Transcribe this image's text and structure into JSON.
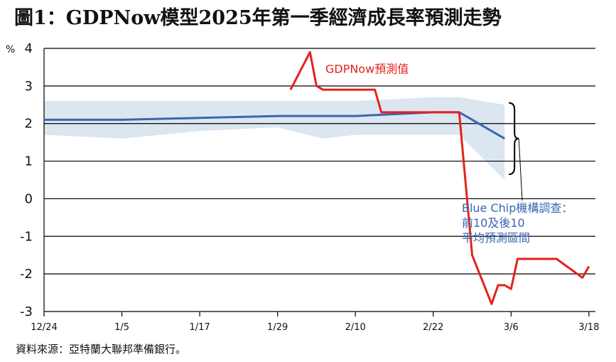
{
  "header": {
    "title": "圖1：GDPNow模型2025年第一季經濟成長率預測走勢"
  },
  "source": "資料來源：亞特蘭大聯邦準備銀行。",
  "chart_data": {
    "type": "line",
    "unit_label": "%",
    "ylim": [
      -3,
      4
    ],
    "yticks": [
      4,
      3,
      2,
      1,
      0,
      -1,
      -2,
      -3
    ],
    "xlim_days": [
      0,
      85
    ],
    "xticks": [
      {
        "label": "12/24",
        "day": 0
      },
      {
        "label": "1/5",
        "day": 12
      },
      {
        "label": "1/17",
        "day": 24
      },
      {
        "label": "1/29",
        "day": 36
      },
      {
        "label": "2/10",
        "day": 48
      },
      {
        "label": "2/22",
        "day": 60
      },
      {
        "label": "3/6",
        "day": 72
      },
      {
        "label": "3/18",
        "day": 84
      }
    ],
    "grid": true,
    "series": [
      {
        "name": "GDPNow預測值",
        "color": "#e2231a",
        "points": [
          [
            38,
            2.9
          ],
          [
            41,
            3.9
          ],
          [
            42,
            3.0
          ],
          [
            43,
            2.9
          ],
          [
            51,
            2.9
          ],
          [
            52,
            2.3
          ],
          [
            64,
            2.3
          ],
          [
            66,
            -1.5
          ],
          [
            69,
            -2.8
          ],
          [
            70,
            -2.3
          ],
          [
            71,
            -2.3
          ],
          [
            72,
            -2.4
          ],
          [
            73,
            -1.6
          ],
          [
            79,
            -1.6
          ],
          [
            83,
            -2.1
          ],
          [
            84,
            -1.8
          ]
        ]
      },
      {
        "name": "Blue Chip機構調查：前10及後10平均預測區間",
        "color": "#3a66b0",
        "band_color": "#dce6f0",
        "points": [
          [
            0,
            2.1
          ],
          [
            12,
            2.1
          ],
          [
            24,
            2.15
          ],
          [
            36,
            2.2
          ],
          [
            48,
            2.2
          ],
          [
            60,
            2.3
          ],
          [
            64,
            2.3
          ],
          [
            71,
            1.6
          ]
        ],
        "band_upper": [
          [
            0,
            2.6
          ],
          [
            12,
            2.6
          ],
          [
            24,
            2.6
          ],
          [
            36,
            2.6
          ],
          [
            48,
            2.6
          ],
          [
            60,
            2.7
          ],
          [
            64,
            2.7
          ],
          [
            71,
            2.5
          ]
        ],
        "band_lower": [
          [
            0,
            1.7
          ],
          [
            12,
            1.6
          ],
          [
            24,
            1.8
          ],
          [
            36,
            1.9
          ],
          [
            43,
            1.6
          ],
          [
            48,
            1.7
          ],
          [
            60,
            1.7
          ],
          [
            64,
            1.7
          ],
          [
            71,
            0.5
          ]
        ]
      }
    ],
    "annotations": {
      "gdpnow_label": "GDPNow預測值",
      "bluechip_label_lines": [
        "Blue Chip機構調查：",
        "前10及後10",
        "平均預測區間"
      ]
    }
  }
}
